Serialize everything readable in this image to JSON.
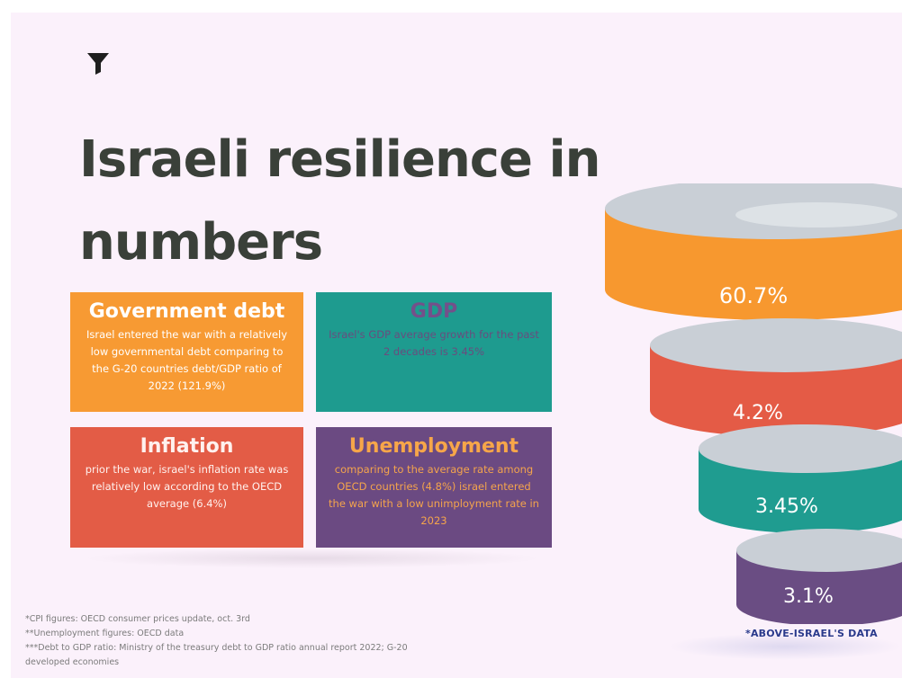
{
  "title": "Israeli resilience in numbers",
  "cards": {
    "debt": {
      "heading": "Government debt",
      "body": "Israel entered the war with a relatively low governmental debt comparing to the G-20 countries debt/GDP ratio of 2022 (121.9%)"
    },
    "gdp": {
      "heading": "GDP",
      "body": "Israel's GDP average growth for the past 2 decades is 3.45%"
    },
    "inflation": {
      "heading": "Inflation",
      "body": "prior the war, israel's inflation rate was relatively low according to the OECD average (6.4%)"
    },
    "unemployment": {
      "heading": "Unemployment",
      "body": "comparing to the average rate among OECD countries (4.8%) israel entered the war with a low unimployment rate in 2023"
    }
  },
  "funnel": {
    "rings": [
      {
        "label": "60.7%",
        "color": "#f7982f"
      },
      {
        "label": "4.2%",
        "color": "#e45b46"
      },
      {
        "label": "3.45%",
        "color": "#1f9c90"
      },
      {
        "label": "3.1%",
        "color": "#6a4d83"
      }
    ],
    "top_color": "#c9cfd6",
    "caption": "*ABOVE-ISRAEL'S DATA"
  },
  "notes": [
    "*CPI figures: OECD consumer prices update, oct. 3rd",
    "**Unemployment figures: OECD data",
    "***Debt to GDP ratio: Ministry of the treasury debt to GDP ratio annual report 2022;  G-20",
    "developed economies"
  ],
  "icons": {
    "logo": "funnel-filter-icon"
  }
}
